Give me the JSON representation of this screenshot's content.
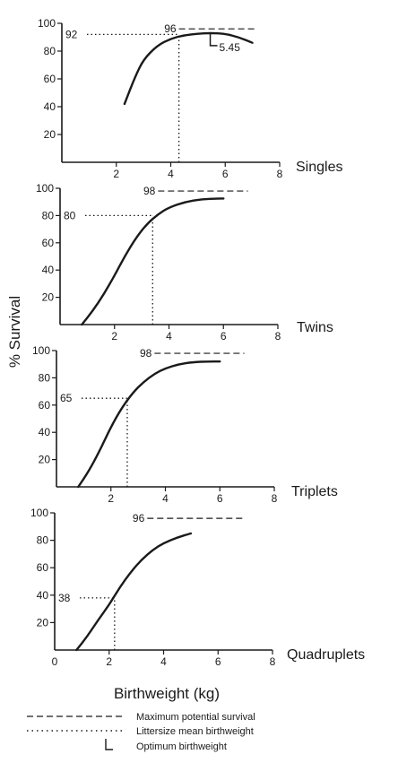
{
  "figure": {
    "y_axis_label": "% Survival",
    "x_axis_label": "Birthweight (kg)",
    "legend": [
      {
        "style": "dashed",
        "label": "Maximum potential survival"
      },
      {
        "style": "dotted",
        "label": "Littersize mean birthweight"
      },
      {
        "style": "arrow",
        "label": "Optimum birthweight"
      }
    ]
  },
  "colors": {
    "ink": "#1a1a1a",
    "background": "#ffffff"
  },
  "chart_data": [
    {
      "type": "line",
      "label": "Singles",
      "xlim": [
        0,
        8
      ],
      "ylim": [
        0,
        100
      ],
      "xticks": [
        2,
        4,
        6,
        8
      ],
      "yticks": [
        20,
        40,
        60,
        80,
        100
      ],
      "show_x_tick_labels": true,
      "x": [
        2.3,
        2.7,
        3.0,
        3.5,
        4.0,
        4.5,
        5.0,
        5.45,
        6.0,
        6.5,
        7.0
      ],
      "y": [
        42,
        62,
        74,
        84,
        89,
        91.5,
        92.5,
        93,
        92.5,
        90,
        86
      ],
      "max_survival": 96,
      "mean_birthweight": 4.3,
      "mean_survival": 92,
      "optimum_birthweight": 5.45,
      "max_line_xrange": [
        4.3,
        7.1
      ],
      "annotations": {
        "max_label": "96",
        "mean_label": "92",
        "optimum_label": "5.45"
      }
    },
    {
      "type": "line",
      "label": "Twins",
      "xlim": [
        0,
        8
      ],
      "ylim": [
        0,
        100
      ],
      "xticks": [
        2,
        4,
        6,
        8
      ],
      "yticks": [
        20,
        40,
        60,
        80,
        100
      ],
      "show_x_tick_labels": true,
      "x": [
        0.8,
        1.2,
        1.6,
        2.0,
        2.4,
        2.8,
        3.2,
        3.6,
        4.0,
        4.6,
        5.2,
        5.8,
        6.0
      ],
      "y": [
        0,
        10,
        22,
        36,
        51,
        64,
        74,
        81,
        86,
        90,
        92,
        92.5,
        92.5
      ],
      "max_survival": 98,
      "mean_birthweight": 3.4,
      "mean_survival": 80,
      "max_line_xrange": [
        3.6,
        6.9
      ],
      "annotations": {
        "max_label": "98",
        "mean_label": "80"
      }
    },
    {
      "type": "line",
      "label": "Triplets",
      "xlim": [
        0,
        8
      ],
      "ylim": [
        0,
        100
      ],
      "xticks": [
        2,
        4,
        6,
        8
      ],
      "yticks": [
        20,
        40,
        60,
        80,
        100
      ],
      "show_x_tick_labels": true,
      "x": [
        0.8,
        1.2,
        1.6,
        2.0,
        2.4,
        2.8,
        3.2,
        3.6,
        4.0,
        4.5,
        5.0,
        5.6,
        6.0
      ],
      "y": [
        0,
        12,
        27,
        44,
        58,
        69,
        77,
        83,
        87,
        90,
        91.5,
        92,
        92
      ],
      "max_survival": 98,
      "mean_birthweight": 2.6,
      "mean_survival": 65,
      "max_line_xrange": [
        3.6,
        6.9
      ],
      "annotations": {
        "max_label": "98",
        "mean_label": "65"
      }
    },
    {
      "type": "line",
      "label": "Quadruplets",
      "xlim": [
        0,
        8
      ],
      "ylim": [
        0,
        100
      ],
      "xticks": [
        0,
        2,
        4,
        6,
        8
      ],
      "yticks": [
        20,
        40,
        60,
        80,
        100
      ],
      "show_x_tick_labels": true,
      "x": [
        0.8,
        1.2,
        1.6,
        2.0,
        2.4,
        2.8,
        3.2,
        3.6,
        4.0,
        4.5,
        5.0
      ],
      "y": [
        0,
        10,
        22,
        33,
        46,
        57,
        66,
        73,
        78,
        82,
        85
      ],
      "max_survival": 96,
      "mean_birthweight": 2.2,
      "mean_survival": 38,
      "max_line_xrange": [
        3.4,
        6.9
      ],
      "annotations": {
        "max_label": "96",
        "mean_label": "38"
      }
    }
  ]
}
